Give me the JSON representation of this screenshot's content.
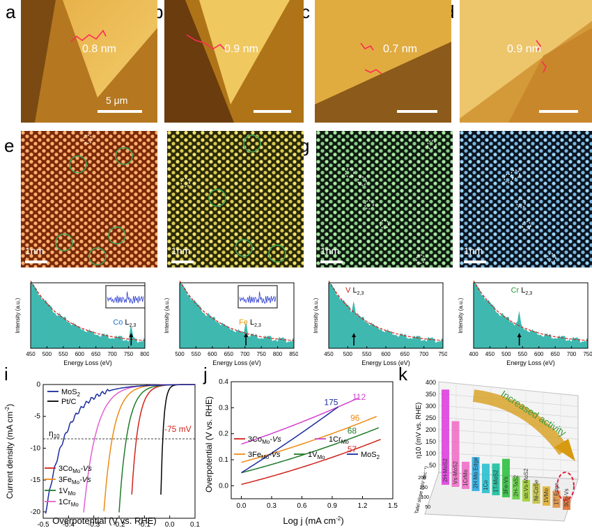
{
  "panels": {
    "a": {
      "label": "a",
      "height": "0.8 nm",
      "scalebar": "5 μm"
    },
    "b": {
      "label": "b",
      "height": "0.9 nm"
    },
    "c": {
      "label": "c",
      "height": "0.7 nm"
    },
    "d": {
      "label": "d",
      "height": "0.9 nm"
    },
    "e": {
      "label": "e",
      "scalebar": "1nm",
      "element": "Co",
      "edge": "L",
      "edge_sub": "2,3",
      "xticks": [
        "450",
        "500",
        "550",
        "600",
        "650",
        "700",
        "750",
        "800"
      ],
      "color": "#1a73c8"
    },
    "f": {
      "label": "f",
      "scalebar": "1nm",
      "element": "Fe",
      "edge": "L",
      "edge_sub": "2,3",
      "xticks": [
        "500",
        "550",
        "600",
        "650",
        "700",
        "750",
        "800",
        "850"
      ],
      "color": "#e09b00"
    },
    "g": {
      "label": "g",
      "scalebar": "1nm",
      "element": "V",
      "edge": "L",
      "edge_sub": "2,3",
      "xticks": [
        "450",
        "500",
        "550",
        "600",
        "650",
        "700",
        "750"
      ],
      "color": "#d0221a"
    },
    "h": {
      "label": "h",
      "scalebar": "1nm",
      "element": "Cr",
      "edge": "L",
      "edge_sub": "2,3",
      "xticks": [
        "400",
        "450",
        "500",
        "550",
        "600",
        "650",
        "700",
        "750"
      ],
      "color": "#1f9a3a"
    },
    "eels_common": {
      "ylabel": "Intensity (a.u.)",
      "xlabel": "Energy Loss (eV)"
    },
    "i": {
      "label": "i",
      "xlabel": "Overpotential (V vs. RHE)",
      "ylabel": "Current density (mA cm",
      "ylabel_sup": "-2",
      "ylabel_end": ")",
      "eta": "η",
      "eta_sub": "10",
      "annotation": "-75 mV",
      "xticks": [
        "-0.5",
        "-0.4",
        "-0.3",
        "-0.2",
        "-0.1",
        "0.0",
        "0.1"
      ],
      "yticks": [
        "0",
        "-5",
        "-10",
        "-15",
        "-20"
      ],
      "legend_top": [
        {
          "name": "MoS",
          "sub": "2",
          "color": "#1a2a9c"
        },
        {
          "name": "Pt/C",
          "sub": "",
          "color": "#000000"
        }
      ],
      "legend_bottom": [
        {
          "name": "3Co",
          "sub": "Mo",
          "suffix": "-Vs",
          "color": "#d0221a"
        },
        {
          "name": "3Fe",
          "sub": "Mo",
          "suffix": "-Vs",
          "color": "#ee8a12"
        },
        {
          "name": "1V",
          "sub": "Mo",
          "suffix": "",
          "color": "#1f7a2a"
        },
        {
          "name": "1Cr",
          "sub": "Mo",
          "suffix": "",
          "color": "#e060d0"
        }
      ]
    },
    "j": {
      "label": "j",
      "xlabel": "Log j (mA cm",
      "xlabel_sup": "-2",
      "xlabel_end": ")",
      "ylabel": "Overpotential (V vs. RHE)",
      "xticks": [
        "0.0",
        "0.3",
        "0.6",
        "0.9",
        "1.2",
        "1.5"
      ],
      "yticks": [
        "0.0",
        "0.1",
        "0.2",
        "0.3",
        "0.4"
      ],
      "slopes": [
        {
          "v": "175",
          "color": "#1a2a9c"
        },
        {
          "v": "112",
          "color": "#d040d0"
        },
        {
          "v": "96",
          "color": "#ee8a12"
        },
        {
          "v": "68",
          "color": "#1f7a2a"
        },
        {
          "v": "57",
          "color": "#d0221a"
        }
      ],
      "legend": [
        {
          "name": "3Co",
          "sub": "Mo",
          "suffix": "-Vs",
          "color": "#d0221a"
        },
        {
          "name": "1Cr",
          "sub": "Mo",
          "suffix": "",
          "color": "#d040d0"
        },
        {
          "name": "3Fe",
          "sub": "Mo",
          "suffix": "-Vs",
          "color": "#ee8a12"
        },
        {
          "name": "1V",
          "sub": "Mo",
          "suffix": "",
          "color": "#1f7a2a"
        },
        {
          "name": "MoS",
          "sub": "2",
          "suffix": "",
          "color": "#1a2a9c"
        }
      ]
    },
    "k": {
      "label": "k",
      "arrow_text": "Increased activity",
      "ylabel": "η10 (mV vs. RHE)",
      "zlabel": "Tafel slope (mV dec⁻¹)",
      "yticks": [
        "400",
        "350",
        "300",
        "250",
        "200",
        "150",
        "100",
        "50"
      ],
      "zticks": [
        "200",
        "150",
        "100",
        "50"
      ],
      "bars": [
        "2H-MoS2",
        "Vs-MoS2",
        "1CrMo",
        "2H Mo Edge",
        "1Co",
        "1T-MoS2",
        "3Fe-Vs",
        "2H-TaS2",
        "str.Vs-MoS2",
        "Ni-CoSe",
        "1VMo",
        "1T' Edge",
        "3Co-Vs"
      ]
    }
  }
}
